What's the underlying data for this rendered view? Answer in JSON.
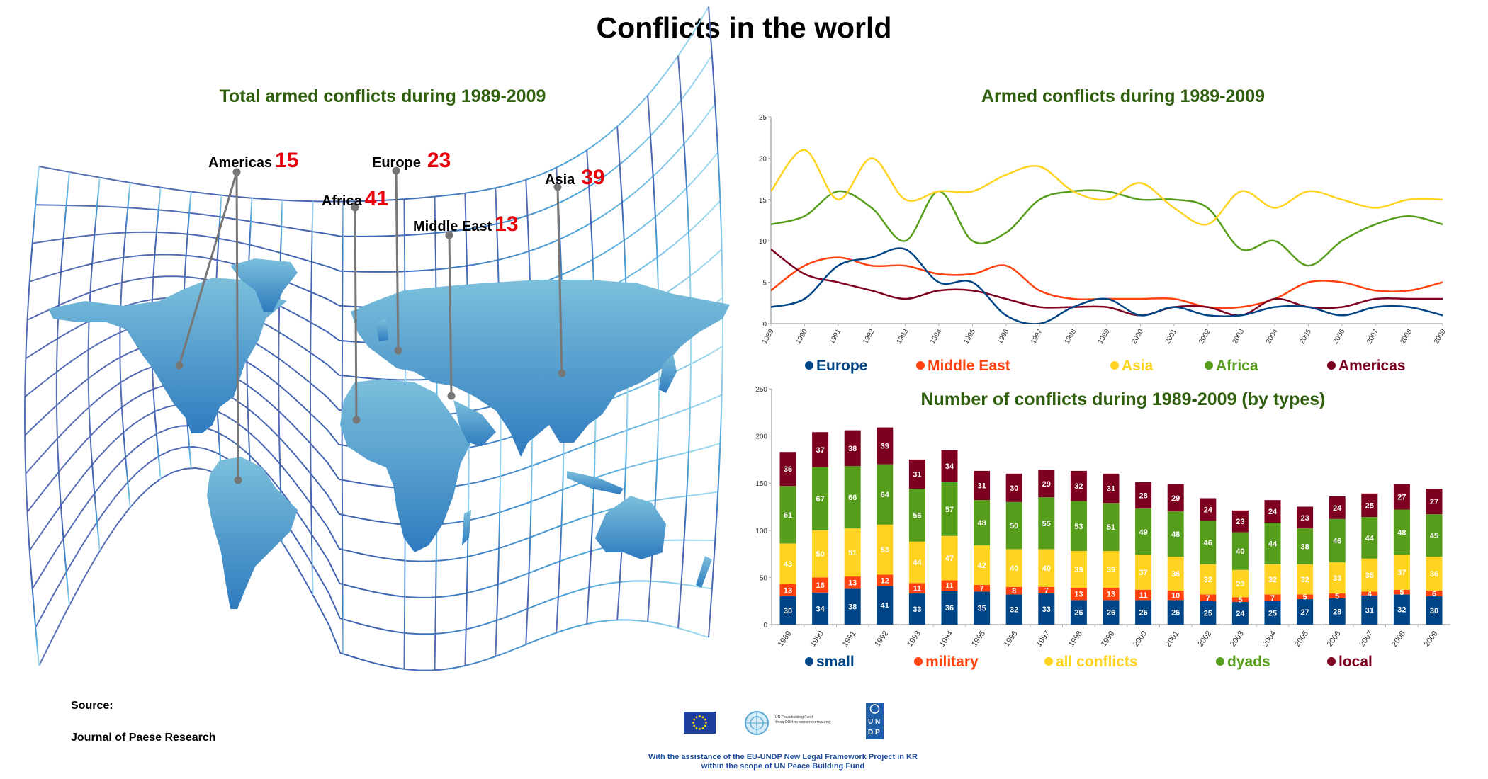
{
  "title": "Conflicts in the world",
  "map": {
    "title": "Total armed conflicts during 1989-2009",
    "regions": [
      {
        "name": "Americas",
        "total": "15"
      },
      {
        "name": "Europe",
        "total": "23"
      },
      {
        "name": "Africa",
        "total": "41"
      },
      {
        "name": "Middle East",
        "total": "13"
      },
      {
        "name": "Asia",
        "total": "39"
      }
    ]
  },
  "source": {
    "label": "Source:",
    "name": "Journal of Paese Research"
  },
  "footer": {
    "line1": "With the assistance of the EU-UNDP New Legal Framework Project in KR",
    "line2": "within the scope of UN Peace Building Fund",
    "logos": [
      "EU flag",
      "UN Peacebuilding Fund",
      "UNDP"
    ],
    "unpbf_text1": "UN Peacebuilding Fund",
    "unpbf_text2": "Фонд ООН по миростроительству",
    "undp_letters": "UNDP"
  },
  "colors": {
    "europe": "#004586",
    "middle_east": "#ff420e",
    "asia": "#ffd320",
    "africa": "#579d1c",
    "americas": "#7e0021",
    "title_green": "#2f5e0d",
    "total_red": "#e8000b"
  },
  "chart_data": [
    {
      "type": "line",
      "title": "Armed conflicts during 1989-2009",
      "xlabel": "",
      "ylabel": "",
      "x": [
        "1989",
        "1990",
        "1991",
        "1992",
        "1993",
        "1994",
        "1995",
        "1996",
        "1997",
        "1998",
        "1999",
        "2000",
        "2001",
        "2002",
        "2003",
        "2004",
        "2005",
        "2006",
        "2007",
        "2008",
        "2009"
      ],
      "ylim": [
        0,
        25
      ],
      "yticks": [
        0,
        5,
        10,
        15,
        20,
        25
      ],
      "grid": false,
      "smooth": true,
      "legend": "bottom",
      "series": [
        {
          "name": "Europe",
          "color": "#004586",
          "values": [
            2,
            3,
            7,
            8,
            9,
            5,
            5,
            1,
            0,
            2,
            3,
            1,
            2,
            1,
            1,
            2,
            2,
            1,
            2,
            2,
            1
          ]
        },
        {
          "name": "Middle East",
          "color": "#ff420e",
          "values": [
            4,
            7,
            8,
            7,
            7,
            6,
            6,
            7,
            4,
            3,
            3,
            3,
            3,
            2,
            2,
            3,
            5,
            5,
            4,
            4,
            5
          ]
        },
        {
          "name": "Asia",
          "color": "#ffd320",
          "values": [
            16,
            21,
            15,
            20,
            15,
            16,
            16,
            18,
            19,
            16,
            15,
            17,
            14,
            12,
            16,
            14,
            16,
            15,
            14,
            15,
            15
          ]
        },
        {
          "name": "Africa",
          "color": "#579d1c",
          "values": [
            12,
            13,
            16,
            14,
            10,
            16,
            10,
            11,
            15,
            16,
            16,
            15,
            15,
            14,
            9,
            10,
            7,
            10,
            12,
            13,
            12
          ]
        },
        {
          "name": "Americas",
          "color": "#7e0021",
          "values": [
            9,
            6,
            5,
            4,
            3,
            4,
            4,
            3,
            2,
            2,
            2,
            1,
            2,
            2,
            1,
            3,
            2,
            2,
            3,
            3,
            3
          ]
        }
      ]
    },
    {
      "type": "bar",
      "stacked": true,
      "title": "Number of conflicts during 1989-2009 (by types)",
      "xlabel": "",
      "ylabel": "",
      "categories": [
        "1989",
        "1990",
        "1991",
        "1992",
        "1993",
        "1994",
        "1995",
        "1996",
        "1997",
        "1998",
        "1999",
        "2000",
        "2001",
        "2002",
        "2003",
        "2004",
        "2005",
        "2006",
        "2007",
        "2008",
        "2009"
      ],
      "ylim": [
        0,
        250
      ],
      "yticks": [
        0,
        50,
        100,
        150,
        200,
        250
      ],
      "grid": false,
      "legend": "bottom",
      "series": [
        {
          "name": "small",
          "color": "#004586",
          "values": [
            30,
            34,
            38,
            41,
            33,
            36,
            35,
            32,
            33,
            26,
            26,
            26,
            26,
            25,
            24,
            25,
            27,
            28,
            31,
            32,
            30
          ]
        },
        {
          "name": "military",
          "color": "#ff420e",
          "values": [
            13,
            16,
            13,
            12,
            11,
            11,
            7,
            8,
            7,
            13,
            13,
            11,
            10,
            7,
            5,
            7,
            5,
            5,
            4,
            5,
            6
          ]
        },
        {
          "name": "all conflicts",
          "color": "#ffd320",
          "values": [
            43,
            50,
            51,
            53,
            44,
            47,
            42,
            40,
            40,
            39,
            39,
            37,
            36,
            32,
            29,
            32,
            32,
            33,
            35,
            37,
            36
          ]
        },
        {
          "name": "dyads",
          "color": "#579d1c",
          "values": [
            61,
            67,
            66,
            64,
            56,
            57,
            48,
            50,
            55,
            53,
            51,
            49,
            48,
            46,
            40,
            44,
            38,
            46,
            44,
            48,
            45
          ]
        },
        {
          "name": "local",
          "color": "#7e0021",
          "values": [
            36,
            37,
            38,
            39,
            31,
            34,
            31,
            30,
            29,
            32,
            31,
            28,
            29,
            24,
            23,
            24,
            23,
            24,
            25,
            27,
            27
          ]
        }
      ]
    }
  ]
}
